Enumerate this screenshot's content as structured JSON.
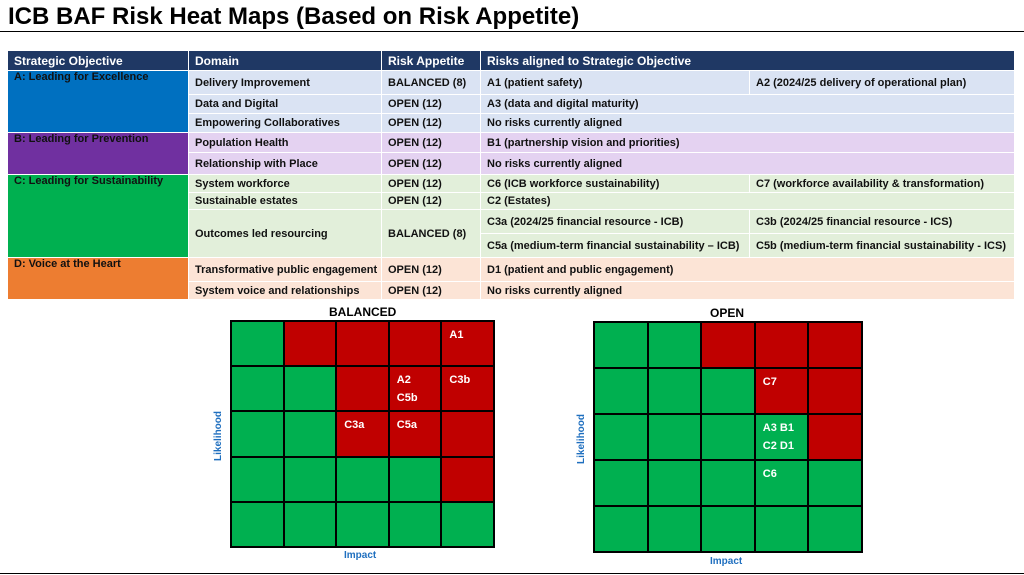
{
  "title": "ICB BAF Risk Heat Maps (Based on Risk Appetite)",
  "table": {
    "headers": [
      "Strategic Objective",
      "Domain",
      "Risk Appetite",
      "Risks aligned to Strategic Objective"
    ],
    "objectives": [
      {
        "label": "A: Leading for Excellence",
        "color": "#0070c0"
      },
      {
        "label": "B: Leading for Prevention",
        "color": "#7030a0"
      },
      {
        "label": "C: Leading for Sustainability",
        "color": "#00b050"
      },
      {
        "label": "D: Voice at the Heart",
        "color": "#ed7d31"
      }
    ],
    "rows": [
      {
        "domain": "Delivery Improvement",
        "appetite": "BALANCED (8)",
        "risk1": "A1 (patient safety)",
        "risk2": "A2 (2024/25 delivery of operational plan)"
      },
      {
        "domain": "Data and Digital",
        "appetite": "OPEN (12)",
        "risk1": "A3 (data and digital maturity)"
      },
      {
        "domain": "Empowering Collaboratives",
        "appetite": "OPEN (12)",
        "risk1": "No risks currently aligned"
      },
      {
        "domain": "Population Health",
        "appetite": "OPEN (12)",
        "risk1": "B1 (partnership vision and priorities)"
      },
      {
        "domain": "Relationship with Place",
        "appetite": "OPEN (12)",
        "risk1": "No risks currently aligned"
      },
      {
        "domain": "System workforce",
        "appetite": "OPEN (12)",
        "risk1": "C6 (ICB workforce sustainability)",
        "risk2": "C7 (workforce availability & transformation)"
      },
      {
        "domain": "Sustainable estates",
        "appetite": "OPEN (12)",
        "risk1": "C2 (Estates)"
      },
      {
        "domain": "Outcomes led resourcing",
        "appetite": "BALANCED (8)",
        "risk1": "C3a (2024/25 financial resource - ICB)",
        "risk2": "C3b (2024/25 financial resource - ICS)",
        "risk3": "C5a (medium-term financial sustainability – ICB)",
        "risk4": "C5b (medium-term financial sustainability - ICS)"
      },
      {
        "domain": "Transformative public engagement",
        "appetite": "OPEN (12)",
        "risk1": "D1 (patient and public engagement)"
      },
      {
        "domain": "System voice and relationships",
        "appetite": "OPEN (12)",
        "risk1": "No risks currently aligned"
      }
    ]
  },
  "heatmaps": [
    {
      "title": "BALANCED",
      "x_label": "Impact",
      "y_label": "Likelihood",
      "colors": {
        "green": "#00b050",
        "red": "#c00000"
      },
      "grid": [
        [
          "g",
          "r",
          "r",
          "r",
          "r"
        ],
        [
          "g",
          "g",
          "r",
          "r",
          "r"
        ],
        [
          "g",
          "g",
          "r",
          "r",
          "r"
        ],
        [
          "g",
          "g",
          "g",
          "g",
          "r"
        ],
        [
          "g",
          "g",
          "g",
          "g",
          "g"
        ]
      ],
      "labels": [
        {
          "row": 0,
          "col": 4,
          "text": "A1"
        },
        {
          "row": 1,
          "col": 3,
          "text": "A2"
        },
        {
          "row": 1,
          "col": 3,
          "text": "C5b"
        },
        {
          "row": 1,
          "col": 4,
          "text": "C3b"
        },
        {
          "row": 2,
          "col": 2,
          "text": "C3a"
        },
        {
          "row": 2,
          "col": 3,
          "text": "C5a"
        }
      ]
    },
    {
      "title": "OPEN",
      "x_label": "Impact",
      "y_label": "Likelihood",
      "colors": {
        "green": "#00b050",
        "red": "#c00000"
      },
      "grid": [
        [
          "g",
          "g",
          "r",
          "r",
          "r"
        ],
        [
          "g",
          "g",
          "g",
          "r",
          "r"
        ],
        [
          "g",
          "g",
          "g",
          "g",
          "r"
        ],
        [
          "g",
          "g",
          "g",
          "g",
          "g"
        ],
        [
          "g",
          "g",
          "g",
          "g",
          "g"
        ]
      ],
      "labels": [
        {
          "row": 1,
          "col": 3,
          "text": "C7"
        },
        {
          "row": 2,
          "col": 3,
          "text": "A3   B1"
        },
        {
          "row": 2,
          "col": 3,
          "text": "C2   D1"
        },
        {
          "row": 3,
          "col": 3,
          "text": "C6"
        }
      ]
    }
  ]
}
